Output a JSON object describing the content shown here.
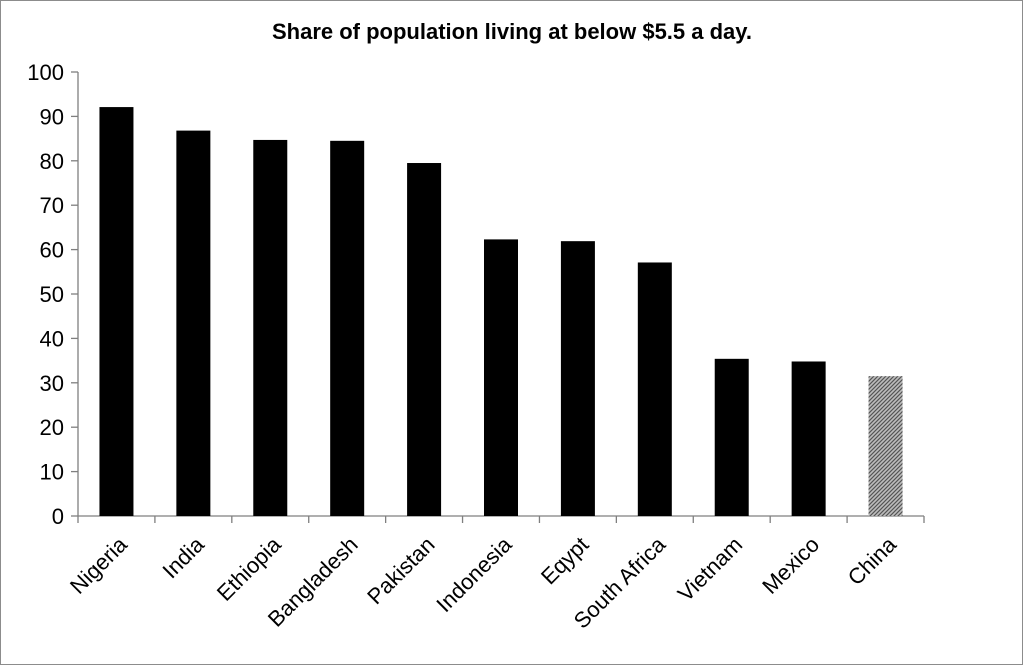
{
  "chart_data": {
    "type": "bar",
    "title": "Share of population living at below $5.5 a day.",
    "xlabel": "",
    "ylabel": "",
    "ylim": [
      0,
      100
    ],
    "yticks": [
      0,
      10,
      20,
      30,
      40,
      50,
      60,
      70,
      80,
      90,
      100
    ],
    "grid": false,
    "legend": "none",
    "categories": [
      "Nigeria",
      "India",
      "Ethiopia",
      "Bangladesh",
      "Pakistan",
      "Indonesia",
      "Eqypt",
      "South Africa",
      "Vietnam",
      "Mexico",
      "China"
    ],
    "values": [
      92.1,
      86.8,
      84.7,
      84.5,
      79.5,
      62.3,
      61.9,
      57.1,
      35.4,
      34.8,
      31.5
    ],
    "colors": {
      "bar": "#000000",
      "highlight": "#808080",
      "highlight_category": "China"
    }
  }
}
